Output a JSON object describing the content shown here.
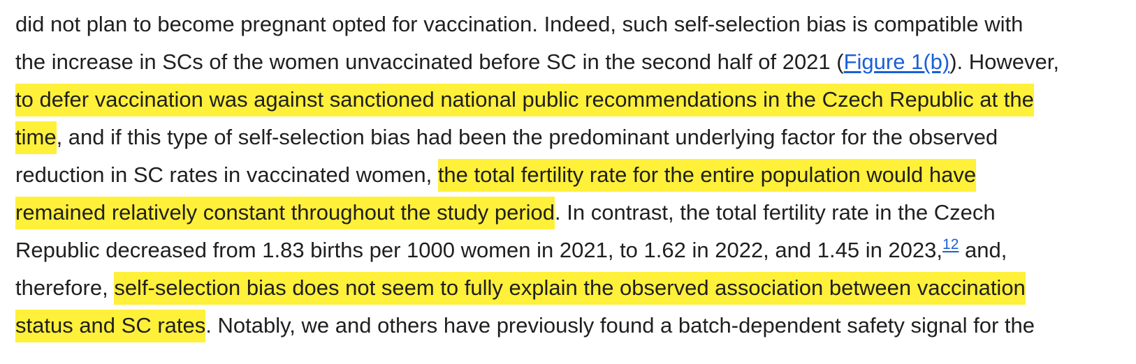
{
  "paragraph": {
    "lines": [
      {
        "segments": [
          "did not plan to become pregnant opted for vaccination. Indeed, such self-selection bias is compatible with"
        ]
      },
      {
        "before": "the increase in SCs of the women unvaccinated before SC in the second half of 2021 (",
        "link": "Figure 1(b)",
        "after": "). However,"
      },
      {
        "highlight": "to defer vaccination was against sanctioned national public recommendations in the Czech Republic at the"
      },
      {
        "highlight": "time",
        "after": ", and if this type of self-selection bias had been the predominant underlying factor for the observed"
      },
      {
        "before": "reduction in SC rates in vaccinated women, ",
        "highlight": "the total fertility rate for the entire population would have"
      },
      {
        "highlight": "remained relatively constant throughout the study period",
        "after": ". In contrast, the total fertility rate in the Czech"
      },
      {
        "before": "Republic decreased from 1.83 births per 1000 women in 2021, to 1.62 in 2022, and 1.45 in 2023,",
        "citation": "12",
        "after": " and,"
      },
      {
        "before": "therefore, ",
        "highlight": "self-selection bias does not seem to fully explain the observed association between vaccination"
      },
      {
        "highlight": "status and SC rates",
        "after": ". Notably, we and others have previously found a batch-dependent safety signal for the"
      }
    ]
  },
  "colors": {
    "highlight": "#fff03a",
    "link": "#1a5fd6",
    "text": "#1f1f1f"
  }
}
